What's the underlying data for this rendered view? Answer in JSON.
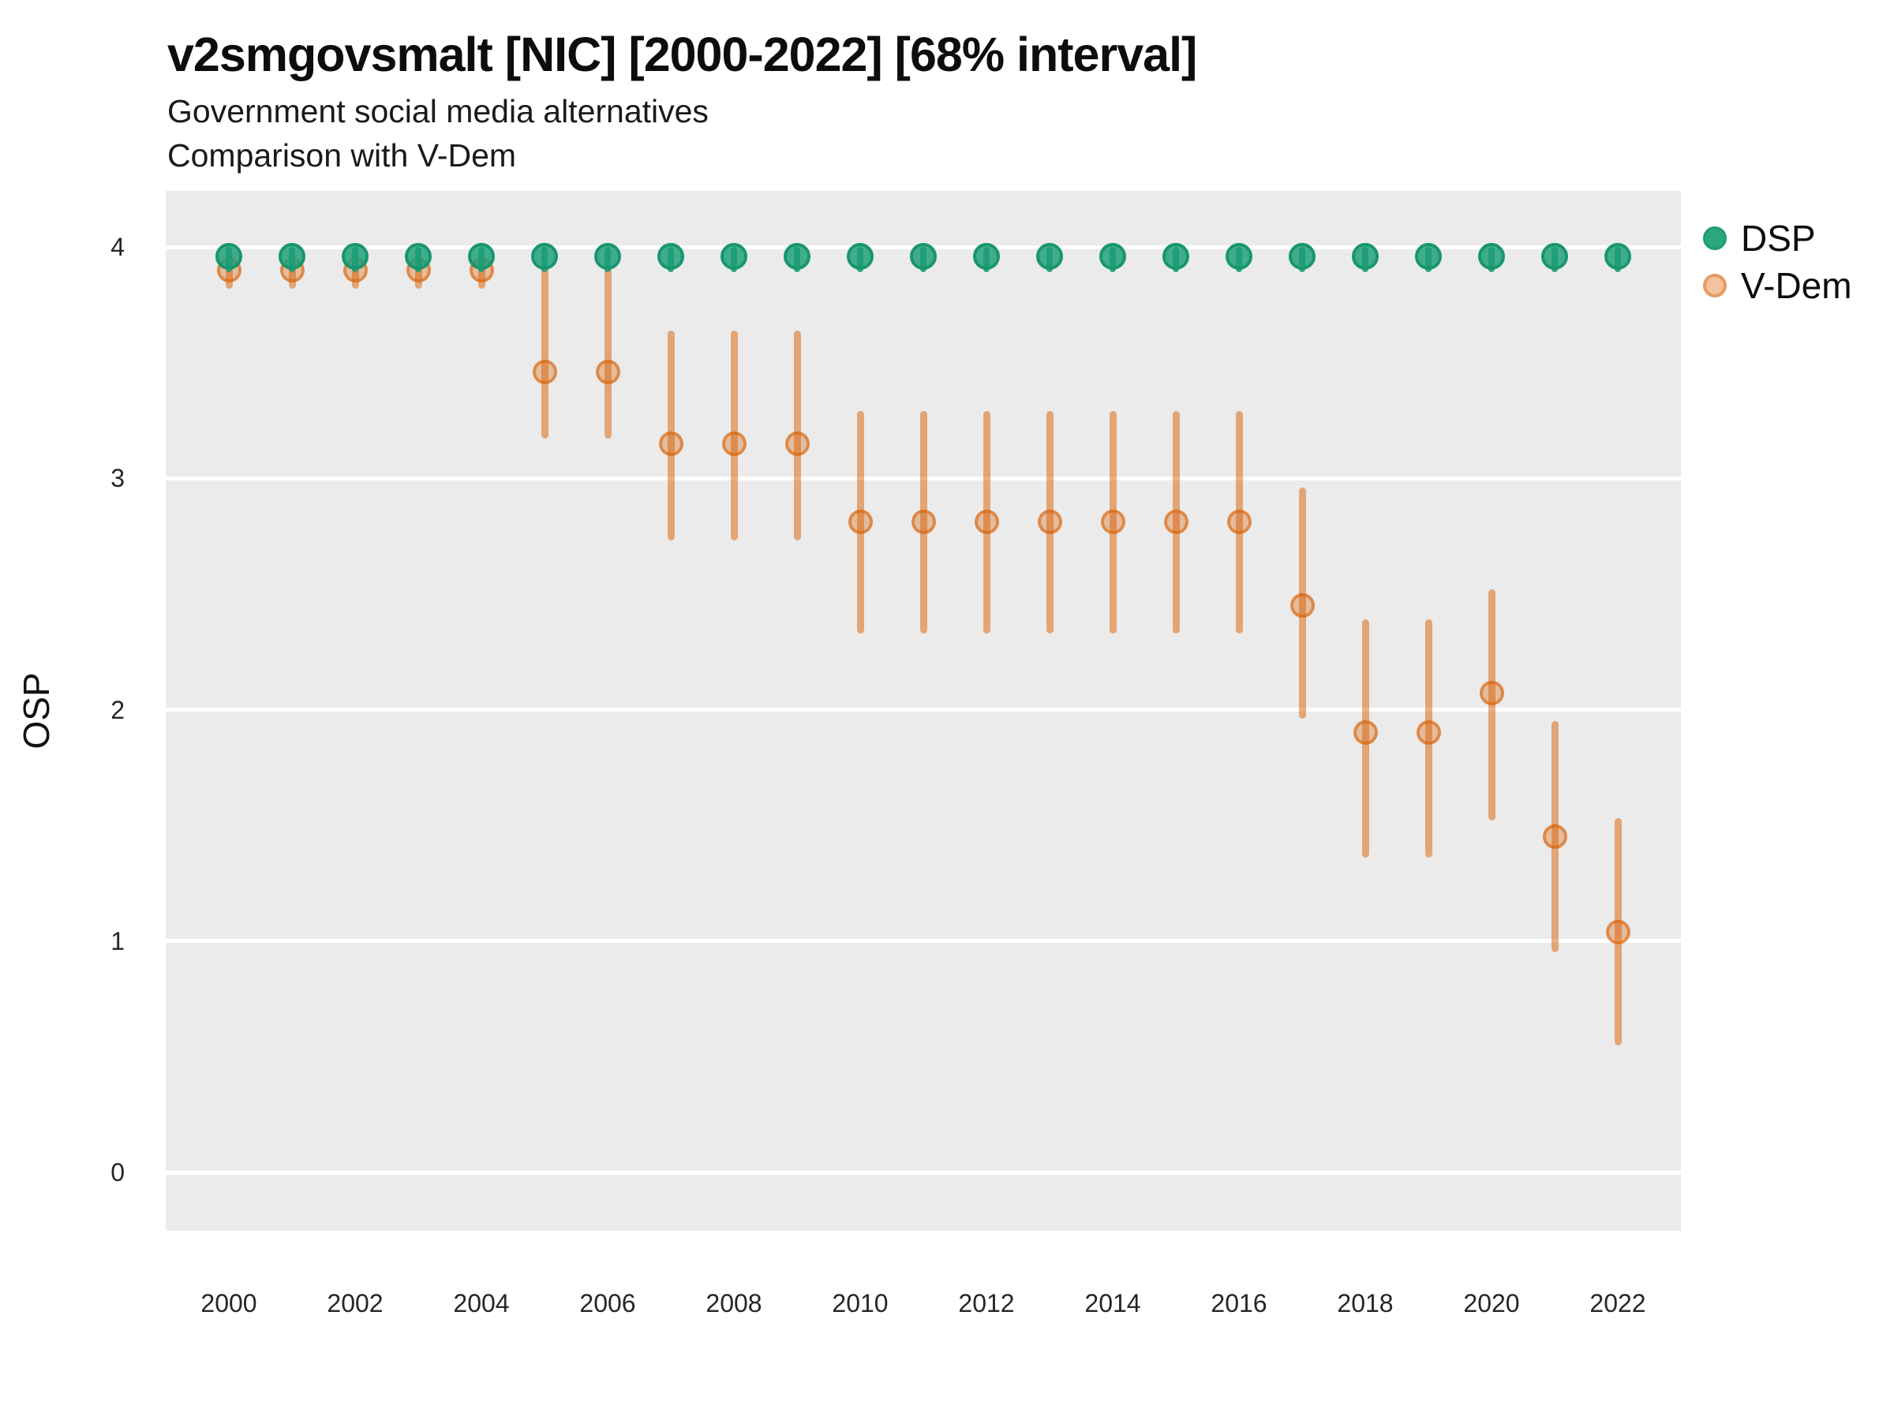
{
  "header": {
    "title": "v2smgovsmalt [NIC] [2000-2022] [68% interval]",
    "subtitle_line1": "Government social media alternatives",
    "subtitle_line2": "Comparison with V-Dem"
  },
  "chart_data": {
    "type": "scatter",
    "title": "v2smgovsmalt [NIC] [2000-2022] [68% interval]",
    "subtitle": [
      "Government social media alternatives",
      "Comparison with V-Dem"
    ],
    "interval_label": "68% interval",
    "xlabel": "",
    "ylabel": "OSP",
    "x": [
      2000,
      2001,
      2002,
      2003,
      2004,
      2005,
      2006,
      2007,
      2008,
      2009,
      2010,
      2011,
      2012,
      2013,
      2014,
      2015,
      2016,
      2017,
      2018,
      2019,
      2020,
      2021,
      2022
    ],
    "xticks": [
      2000,
      2002,
      2004,
      2006,
      2008,
      2010,
      2012,
      2014,
      2016,
      2018,
      2020,
      2022
    ],
    "yticks": [
      0,
      1,
      2,
      3,
      4
    ],
    "ylim": [
      -0.26,
      4.24
    ],
    "grid": "major-horizontal-white-on-grey",
    "legend_position": "right",
    "series": [
      {
        "name": "V-Dem",
        "swatch": "vdem",
        "color": "#d95f02",
        "means": [
          3.9,
          3.9,
          3.9,
          3.9,
          3.9,
          3.46,
          3.46,
          3.15,
          3.15,
          3.15,
          2.81,
          2.81,
          2.81,
          2.81,
          2.81,
          2.81,
          2.81,
          2.45,
          1.9,
          1.9,
          2.07,
          1.45,
          1.04
        ],
        "lo": [
          3.82,
          3.82,
          3.82,
          3.82,
          3.82,
          3.17,
          3.17,
          2.73,
          2.73,
          2.73,
          2.33,
          2.33,
          2.33,
          2.33,
          2.33,
          2.33,
          2.33,
          1.96,
          1.36,
          1.36,
          1.52,
          0.95,
          0.55
        ],
        "hi": [
          3.97,
          3.97,
          3.97,
          3.97,
          3.97,
          3.93,
          3.93,
          3.64,
          3.64,
          3.64,
          3.29,
          3.29,
          3.29,
          3.29,
          3.29,
          3.29,
          3.29,
          2.96,
          2.39,
          2.39,
          2.52,
          1.95,
          1.53
        ]
      },
      {
        "name": "DSP",
        "swatch": "dsp",
        "color": "#1b9e77",
        "means": [
          3.96,
          3.96,
          3.96,
          3.96,
          3.96,
          3.96,
          3.96,
          3.96,
          3.96,
          3.96,
          3.96,
          3.96,
          3.96,
          3.96,
          3.96,
          3.96,
          3.96,
          3.96,
          3.96,
          3.96,
          3.96,
          3.96,
          3.96
        ],
        "lo": [
          3.89,
          3.89,
          3.89,
          3.89,
          3.89,
          3.89,
          3.89,
          3.89,
          3.89,
          3.89,
          3.89,
          3.89,
          3.89,
          3.89,
          3.89,
          3.89,
          3.89,
          3.89,
          3.89,
          3.89,
          3.89,
          3.89,
          3.89
        ],
        "hi": [
          4.0,
          4.0,
          4.0,
          4.0,
          4.0,
          4.0,
          4.0,
          4.0,
          4.0,
          4.0,
          4.0,
          4.0,
          4.0,
          4.0,
          4.0,
          4.0,
          4.0,
          4.0,
          4.0,
          4.0,
          4.0,
          4.0,
          4.0
        ]
      }
    ],
    "legend": {
      "items": [
        {
          "label": "DSP",
          "swatch": "dsp"
        },
        {
          "label": "V-Dem",
          "swatch": "vdem"
        }
      ]
    },
    "colors": {
      "dsp_fill": "rgba(27,158,119,0.82)",
      "dsp_stroke": "#17976b",
      "dsp_line": "rgba(27,158,119,0.9)",
      "vdem_fill": "rgba(217,95,2,0.33)",
      "vdem_stroke": "rgba(217,95,2,0.55)",
      "vdem_line": "rgba(217,95,2,0.5)",
      "panel_bg": "#ebebeb",
      "grid": "#ffffff"
    }
  }
}
